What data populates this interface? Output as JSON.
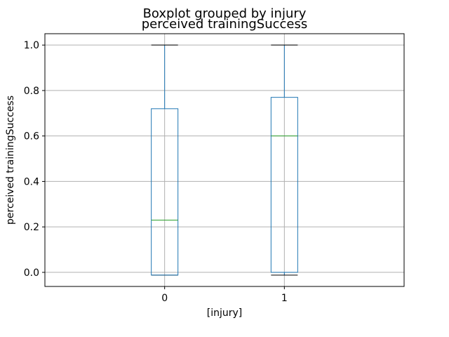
{
  "chart_data": {
    "type": "boxplot",
    "suptitle": "Boxplot grouped by injury",
    "title": "perceived trainingSuccess",
    "xlabel": "[injury]",
    "ylabel": "perceived trainingSuccess",
    "categories": [
      "0",
      "1"
    ],
    "ylim": [
      -0.062,
      1.05
    ],
    "yticks": [
      0.0,
      0.2,
      0.4,
      0.6,
      0.8,
      1.0
    ],
    "ytick_labels": [
      "0.0",
      "0.2",
      "0.4",
      "0.6",
      "0.8",
      "1.0"
    ],
    "grid": true,
    "boxes": [
      {
        "category": "0",
        "whisker_low": -0.012,
        "q1": -0.012,
        "median": 0.23,
        "q3": 0.72,
        "whisker_high": 1.0
      },
      {
        "category": "1",
        "whisker_low": -0.012,
        "q1": 0.0,
        "median": 0.6,
        "q3": 0.77,
        "whisker_high": 1.0
      }
    ],
    "colors": {
      "box": "#1f77b4",
      "median": "#2ca02c",
      "cap": "#000000",
      "grid": "#b0b0b0"
    }
  }
}
